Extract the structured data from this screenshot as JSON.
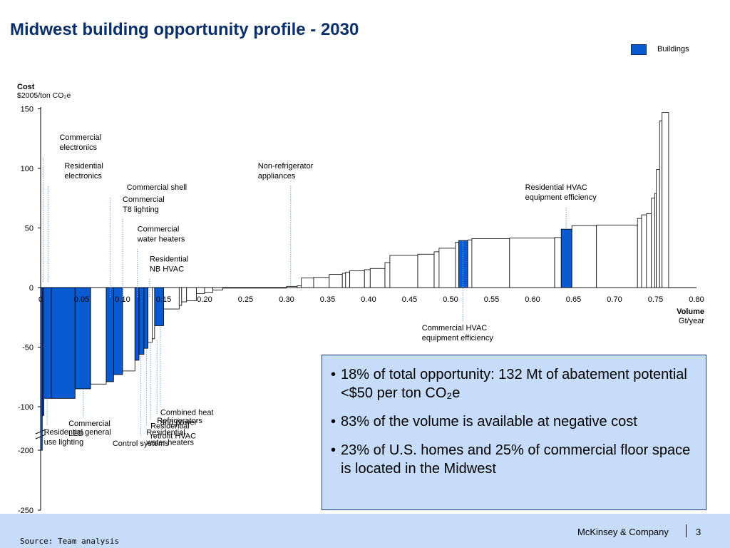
{
  "page": {
    "title": "Midwest building opportunity profile - 2030",
    "legend_label": "Buildings",
    "legend_color": "#0a5bd1",
    "info_bullets": [
      "18% of total opportunity: 132 Mt of abatement potential <$50 per ton CO₂e",
      "83% of the volume is available at negative cost",
      "23% of U.S. homes and 25% of commercial floor space is located in the Midwest"
    ],
    "source": "Source: Team analysis",
    "company": "McKinsey & Company",
    "page_number": "3"
  },
  "chart_data": {
    "type": "bar",
    "subtype": "marginal-abatement-cost-curve",
    "ylabel": "Cost",
    "yunit": "$2005/ton CO₂e",
    "xlabel": "Volume",
    "xunit": "Gt/year",
    "xlim": [
      0,
      0.8
    ],
    "xticks": [
      "0",
      "0.05",
      "0.10",
      "0.15",
      "0.20",
      "0.25",
      "0.30",
      "0.35",
      "0.40",
      "0.45",
      "0.50",
      "0.55",
      "0.60",
      "0.65",
      "0.70",
      "0.75",
      "0.80"
    ],
    "yticks": [
      "150",
      "100",
      "50",
      "0",
      "-50",
      "-100",
      "-200",
      "-250"
    ],
    "y_axis_break": [
      -100,
      -200
    ],
    "highlight_color": "#0a5bd1",
    "bars": [
      {
        "x0": 0.0,
        "x1": 0.002,
        "y": -200,
        "hl": true
      },
      {
        "x0": 0.002,
        "x1": 0.004,
        "y": -120,
        "hl": true
      },
      {
        "x0": 0.004,
        "x1": 0.013,
        "y": -93,
        "hl": true
      },
      {
        "x0": 0.013,
        "x1": 0.042,
        "y": -93,
        "hl": true
      },
      {
        "x0": 0.042,
        "x1": 0.061,
        "y": -85,
        "hl": true
      },
      {
        "x0": 0.061,
        "x1": 0.08,
        "y": -81,
        "hl": false
      },
      {
        "x0": 0.08,
        "x1": 0.089,
        "y": -79,
        "hl": true
      },
      {
        "x0": 0.089,
        "x1": 0.1,
        "y": -73,
        "hl": true
      },
      {
        "x0": 0.1,
        "x1": 0.115,
        "y": -70,
        "hl": false
      },
      {
        "x0": 0.115,
        "x1": 0.12,
        "y": -61,
        "hl": true
      },
      {
        "x0": 0.12,
        "x1": 0.126,
        "y": -56,
        "hl": true
      },
      {
        "x0": 0.126,
        "x1": 0.131,
        "y": -51,
        "hl": true
      },
      {
        "x0": 0.131,
        "x1": 0.136,
        "y": -46,
        "hl": false
      },
      {
        "x0": 0.136,
        "x1": 0.139,
        "y": -43,
        "hl": false
      },
      {
        "x0": 0.139,
        "x1": 0.15,
        "y": -32,
        "hl": true
      },
      {
        "x0": 0.15,
        "x1": 0.169,
        "y": -18,
        "hl": false
      },
      {
        "x0": 0.169,
        "x1": 0.172,
        "y": -15,
        "hl": false
      },
      {
        "x0": 0.172,
        "x1": 0.178,
        "y": -12,
        "hl": false
      },
      {
        "x0": 0.178,
        "x1": 0.19,
        "y": -11,
        "hl": false
      },
      {
        "x0": 0.19,
        "x1": 0.2,
        "y": -5,
        "hl": false
      },
      {
        "x0": 0.2,
        "x1": 0.21,
        "y": -4,
        "hl": false
      },
      {
        "x0": 0.21,
        "x1": 0.222,
        "y": -2,
        "hl": false
      },
      {
        "x0": 0.222,
        "x1": 0.3,
        "y": 0,
        "hl": false
      },
      {
        "x0": 0.3,
        "x1": 0.313,
        "y": 1,
        "hl": false
      },
      {
        "x0": 0.313,
        "x1": 0.318,
        "y": 1.5,
        "hl": false
      },
      {
        "x0": 0.318,
        "x1": 0.333,
        "y": 8,
        "hl": false
      },
      {
        "x0": 0.333,
        "x1": 0.352,
        "y": 8.5,
        "hl": false
      },
      {
        "x0": 0.352,
        "x1": 0.368,
        "y": 11,
        "hl": false
      },
      {
        "x0": 0.368,
        "x1": 0.372,
        "y": 12,
        "hl": false
      },
      {
        "x0": 0.372,
        "x1": 0.377,
        "y": 13,
        "hl": false
      },
      {
        "x0": 0.377,
        "x1": 0.395,
        "y": 14,
        "hl": false
      },
      {
        "x0": 0.395,
        "x1": 0.402,
        "y": 15,
        "hl": false
      },
      {
        "x0": 0.402,
        "x1": 0.42,
        "y": 16,
        "hl": false
      },
      {
        "x0": 0.42,
        "x1": 0.426,
        "y": 21,
        "hl": false
      },
      {
        "x0": 0.426,
        "x1": 0.46,
        "y": 27,
        "hl": false
      },
      {
        "x0": 0.46,
        "x1": 0.48,
        "y": 28,
        "hl": false
      },
      {
        "x0": 0.48,
        "x1": 0.486,
        "y": 30,
        "hl": false
      },
      {
        "x0": 0.486,
        "x1": 0.506,
        "y": 33,
        "hl": false
      },
      {
        "x0": 0.506,
        "x1": 0.51,
        "y": 38,
        "hl": false
      },
      {
        "x0": 0.51,
        "x1": 0.521,
        "y": 39.5,
        "hl": true
      },
      {
        "x0": 0.521,
        "x1": 0.526,
        "y": 40,
        "hl": false
      },
      {
        "x0": 0.526,
        "x1": 0.572,
        "y": 41,
        "hl": false
      },
      {
        "x0": 0.572,
        "x1": 0.627,
        "y": 41.5,
        "hl": false
      },
      {
        "x0": 0.627,
        "x1": 0.635,
        "y": 42,
        "hl": false
      },
      {
        "x0": 0.635,
        "x1": 0.648,
        "y": 49,
        "hl": true
      },
      {
        "x0": 0.648,
        "x1": 0.678,
        "y": 52,
        "hl": false
      },
      {
        "x0": 0.678,
        "x1": 0.728,
        "y": 52.5,
        "hl": false
      },
      {
        "x0": 0.728,
        "x1": 0.733,
        "y": 58,
        "hl": false
      },
      {
        "x0": 0.733,
        "x1": 0.739,
        "y": 61,
        "hl": false
      },
      {
        "x0": 0.739,
        "x1": 0.745,
        "y": 62,
        "hl": false
      },
      {
        "x0": 0.745,
        "x1": 0.749,
        "y": 75,
        "hl": false
      },
      {
        "x0": 0.749,
        "x1": 0.751,
        "y": 79,
        "hl": false
      },
      {
        "x0": 0.751,
        "x1": 0.755,
        "y": 99,
        "hl": false
      },
      {
        "x0": 0.755,
        "x1": 0.758,
        "y": 140,
        "hl": false
      },
      {
        "x0": 0.758,
        "x1": 0.766,
        "y": 147,
        "hl": false
      }
    ],
    "annotations": [
      {
        "lines": [
          "Commercial",
          "electronics"
        ],
        "x": 0.003,
        "ay": 5,
        "label_y": 124,
        "anchor": "start",
        "dy": 0.02
      },
      {
        "lines": [
          "Residential",
          "electronics"
        ],
        "x": 0.009,
        "ay": 5,
        "label_y": 100,
        "anchor": "start",
        "dy": 0.02
      },
      {
        "lines": [
          "Commercial shell"
        ],
        "x": 0.085,
        "ay": -8,
        "label_y": 82,
        "anchor": "start",
        "dy": 0.02
      },
      {
        "lines": [
          "Commercial",
          "T8 lighting"
        ],
        "x": 0.1,
        "ay": -8,
        "label_y": 72,
        "anchor": "start",
        "dy": 0.0
      },
      {
        "lines": [
          "Commercial",
          "water heaters"
        ],
        "x": 0.118,
        "ay": -8,
        "label_y": 47,
        "anchor": "start",
        "dy": 0.0
      },
      {
        "lines": [
          "Residential",
          "NB HVAC"
        ],
        "x": 0.133,
        "ay": -8,
        "label_y": 22,
        "anchor": "start",
        "dy": 0.0
      },
      {
        "lines": [
          "Non-refrigerator",
          "appliances"
        ],
        "x": 0.305,
        "ay": 2,
        "label_y": 100,
        "anchor": "start",
        "dy": -0.04
      },
      {
        "lines": [
          "Residential HVAC",
          "equipment efficiency"
        ],
        "x": 0.641,
        "ay": 50,
        "label_y": 82,
        "anchor": "start",
        "dy": -0.05
      },
      {
        "lines": [
          "Commercial HVAC",
          "equipment efficiency"
        ],
        "x": 0.515,
        "ay": 39,
        "label_y": -36,
        "anchor": "start",
        "dy": -0.05
      },
      {
        "lines": [
          "Combined heat",
          "and power"
        ],
        "x": 0.146,
        "ay": -33,
        "label_y": -119,
        "anchor": "start",
        "dy": 0.0
      },
      {
        "lines": [
          "Refrigerators"
        ],
        "x": 0.142,
        "ay": -44,
        "label_y": -138,
        "anchor": "start",
        "dy": 0.0
      },
      {
        "lines": [
          "Residential",
          "retrofit HVAC"
        ],
        "x": 0.134,
        "ay": -47,
        "label_y": -150,
        "anchor": "start",
        "dy": 0.0
      },
      {
        "lines": [
          "Residential",
          "water heaters"
        ],
        "x": 0.129,
        "ay": -52,
        "label_y": -165,
        "anchor": "start",
        "dy": 0.0
      },
      {
        "lines": [
          "Control systems"
        ],
        "x": 0.122,
        "ay": -57,
        "label_y": -190,
        "anchor": "middle",
        "dy": 0.0
      },
      {
        "lines": [
          "Commercial",
          "LED"
        ],
        "x": 0.052,
        "ay": -85,
        "label_y": -144,
        "anchor": "start",
        "dy": -0.018
      },
      {
        "lines": [
          "Residential general",
          "use lighting"
        ],
        "x": 0.008,
        "ay": -93,
        "label_y": -164,
        "anchor": "start",
        "dy": -0.004
      }
    ]
  }
}
